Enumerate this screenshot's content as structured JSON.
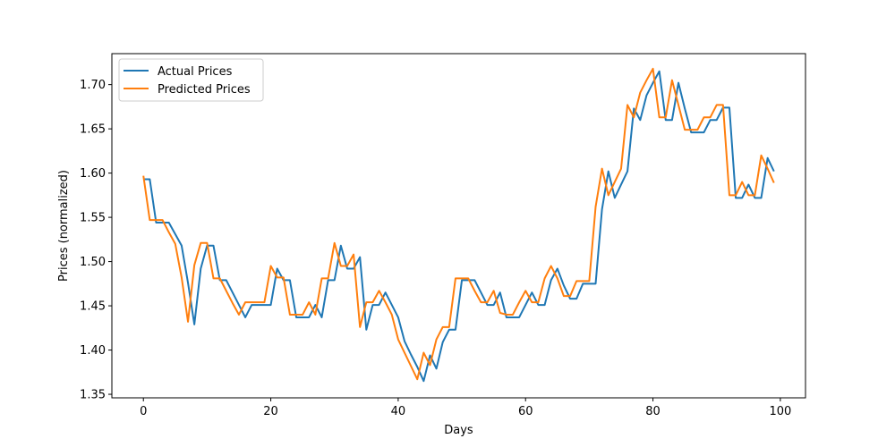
{
  "chart_data": {
    "type": "line",
    "title": "",
    "xlabel": "Days",
    "ylabel": "Prices (normalized)",
    "xlim": [
      -4.95,
      103.95
    ],
    "ylim": [
      1.346,
      1.735
    ],
    "grid": false,
    "legend_position": "top-left",
    "x_ticks": [
      0,
      20,
      40,
      60,
      80,
      100
    ],
    "x_tick_labels": [
      "0",
      "20",
      "40",
      "60",
      "80",
      "100"
    ],
    "y_ticks": [
      1.35,
      1.4,
      1.45,
      1.5,
      1.55,
      1.6,
      1.65,
      1.7
    ],
    "y_tick_labels": [
      "1.35",
      "1.40",
      "1.45",
      "1.50",
      "1.55",
      "1.60",
      "1.65",
      "1.70"
    ],
    "series": [
      {
        "name": "Actual Prices",
        "color": "#1f77b4",
        "values": [
          1.593,
          1.593,
          1.544,
          1.544,
          1.544,
          1.531,
          1.518,
          1.476,
          1.429,
          1.492,
          1.518,
          1.518,
          1.479,
          1.479,
          1.465,
          1.451,
          1.437,
          1.451,
          1.451,
          1.451,
          1.451,
          1.492,
          1.479,
          1.479,
          1.437,
          1.437,
          1.437,
          1.451,
          1.437,
          1.479,
          1.479,
          1.518,
          1.492,
          1.492,
          1.505,
          1.423,
          1.451,
          1.451,
          1.465,
          1.451,
          1.437,
          1.41,
          1.395,
          1.381,
          1.365,
          1.394,
          1.379,
          1.409,
          1.423,
          1.423,
          1.479,
          1.479,
          1.479,
          1.465,
          1.451,
          1.451,
          1.465,
          1.437,
          1.437,
          1.437,
          1.451,
          1.465,
          1.451,
          1.451,
          1.479,
          1.492,
          1.473,
          1.458,
          1.458,
          1.475,
          1.475,
          1.475,
          1.559,
          1.602,
          1.572,
          1.587,
          1.602,
          1.673,
          1.66,
          1.688,
          1.702,
          1.715,
          1.66,
          1.66,
          1.702,
          1.673,
          1.646,
          1.646,
          1.646,
          1.66,
          1.66,
          1.674,
          1.674,
          1.572,
          1.572,
          1.587,
          1.572,
          1.572,
          1.617,
          1.602
        ]
      },
      {
        "name": "Predicted Prices",
        "color": "#ff7f0e",
        "values": [
          1.597,
          1.547,
          1.547,
          1.547,
          1.533,
          1.52,
          1.482,
          1.432,
          1.496,
          1.521,
          1.521,
          1.481,
          1.481,
          1.467,
          1.453,
          1.44,
          1.454,
          1.454,
          1.454,
          1.454,
          1.495,
          1.482,
          1.482,
          1.44,
          1.44,
          1.44,
          1.454,
          1.44,
          1.481,
          1.481,
          1.521,
          1.495,
          1.495,
          1.508,
          1.426,
          1.454,
          1.454,
          1.467,
          1.454,
          1.44,
          1.412,
          1.397,
          1.382,
          1.367,
          1.397,
          1.383,
          1.412,
          1.426,
          1.426,
          1.481,
          1.481,
          1.481,
          1.467,
          1.454,
          1.454,
          1.467,
          1.442,
          1.44,
          1.44,
          1.454,
          1.467,
          1.454,
          1.454,
          1.481,
          1.495,
          1.481,
          1.461,
          1.461,
          1.478,
          1.478,
          1.478,
          1.562,
          1.605,
          1.575,
          1.59,
          1.605,
          1.677,
          1.663,
          1.691,
          1.705,
          1.718,
          1.663,
          1.663,
          1.705,
          1.677,
          1.649,
          1.649,
          1.649,
          1.663,
          1.663,
          1.677,
          1.677,
          1.575,
          1.575,
          1.59,
          1.575,
          1.575,
          1.62,
          1.605,
          1.589
        ]
      }
    ]
  }
}
